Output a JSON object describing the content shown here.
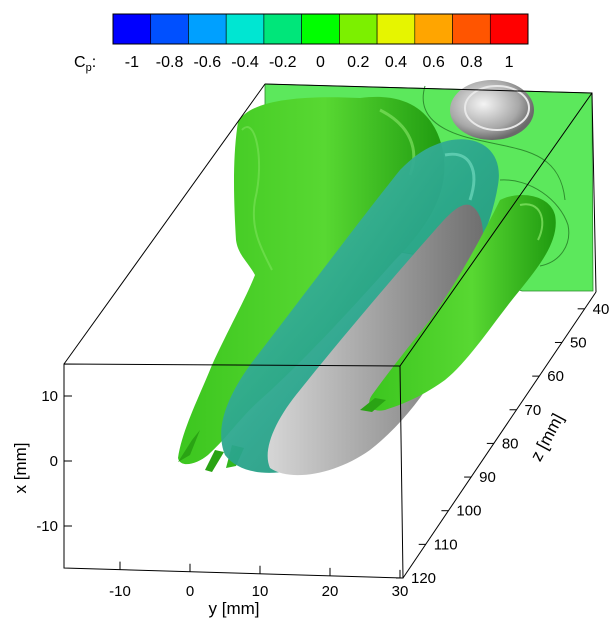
{
  "chart_data": {
    "type": "isosurface-3d",
    "colorbar": {
      "label_main": "C",
      "label_sub": "p",
      "label_suffix": ":",
      "min": -1,
      "max": 1,
      "step": 0.2,
      "tick_labels": [
        "-1",
        "-0.8",
        "-0.6",
        "-0.4",
        "-0.2",
        "0",
        "0.2",
        "0.4",
        "0.6",
        "0.8",
        "1"
      ],
      "colors": [
        "#0000ff",
        "#0050ff",
        "#00a0ff",
        "#00e6d2",
        "#00e67a",
        "#00ff00",
        "#7cf000",
        "#e6f500",
        "#ffa500",
        "#ff5500",
        "#ff0000"
      ]
    },
    "axes": {
      "x": {
        "label": "x [mm]",
        "range": [
          -15,
          15
        ],
        "ticks": [
          10,
          0,
          -10
        ],
        "tick_labels": [
          "10",
          "0",
          "-10"
        ]
      },
      "y": {
        "label": "y [mm]",
        "range": [
          -18,
          30
        ],
        "ticks": [
          -10,
          0,
          10,
          20,
          30
        ],
        "tick_labels": [
          "-10",
          "0",
          "10",
          "20",
          "30"
        ]
      },
      "z": {
        "label": "z [mm]",
        "range": [
          35,
          120
        ],
        "ticks": [
          40,
          50,
          60,
          70,
          80,
          90,
          100,
          110,
          120
        ],
        "tick_labels": [
          "40",
          "50",
          "60",
          "70",
          "80",
          "90",
          "100",
          "110",
          "120"
        ]
      }
    },
    "slice_plane_color": "#5ce85c",
    "surface_colors": {
      "green": "#33c21a",
      "teal": "#25a78a",
      "gray": "#9a9a9a"
    }
  }
}
